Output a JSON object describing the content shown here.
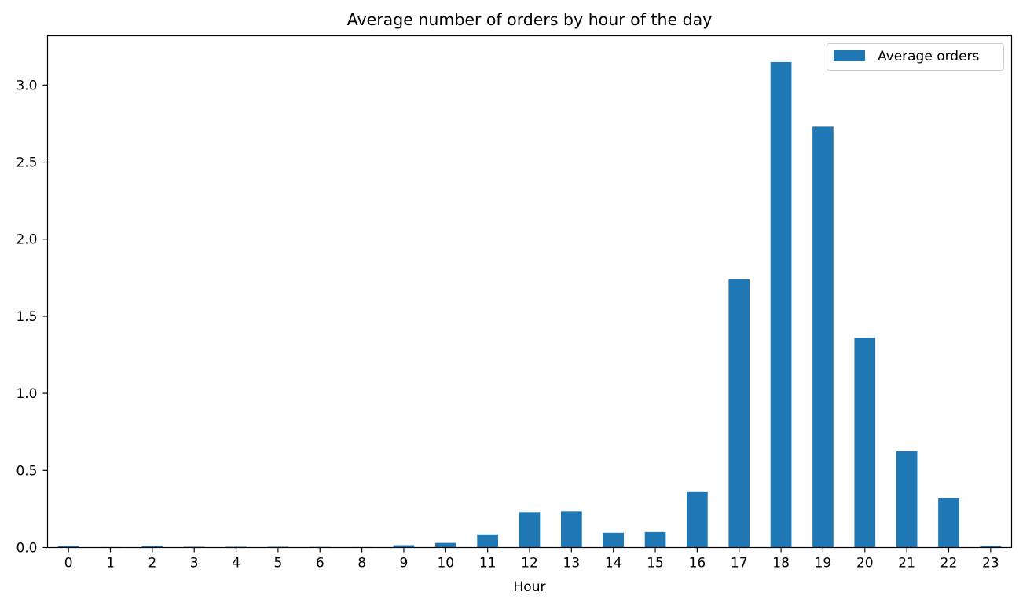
{
  "chart_data": {
    "type": "bar",
    "title": "Average number of orders by hour of the day",
    "xlabel": "Hour",
    "ylabel": "",
    "categories": [
      "0",
      "1",
      "2",
      "3",
      "4",
      "5",
      "6",
      "8",
      "9",
      "10",
      "11",
      "12",
      "13",
      "14",
      "15",
      "16",
      "17",
      "18",
      "19",
      "20",
      "21",
      "22",
      "23"
    ],
    "series": [
      {
        "name": "Average orders",
        "color": "#1f77b4",
        "values": [
          0.01,
          0.003,
          0.01,
          0.005,
          0.005,
          0.005,
          0.004,
          0.003,
          0.015,
          0.03,
          0.085,
          0.23,
          0.235,
          0.095,
          0.1,
          0.36,
          1.74,
          3.15,
          2.73,
          1.36,
          0.625,
          0.32,
          0.01
        ]
      }
    ],
    "ylim": [
      0,
      3.32
    ],
    "yticks": [
      "0.0",
      "0.5",
      "1.0",
      "1.5",
      "2.0",
      "2.5",
      "3.0"
    ],
    "grid": false,
    "legend": "upper right"
  }
}
